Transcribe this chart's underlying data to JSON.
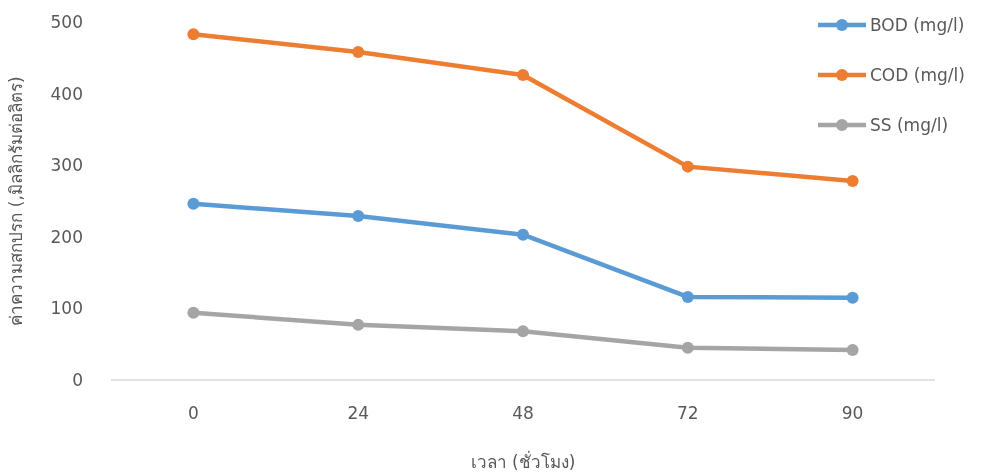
{
  "chart_data": {
    "type": "line",
    "xlabel": "เวลา (ชั่วโมง)",
    "ylabel": "ค่าความสกปรก (,มิลลิกรัมต่อลิตร)",
    "categories": [
      "0",
      "24",
      "48",
      "72",
      "90"
    ],
    "ylim": [
      0,
      500
    ],
    "yticks": [
      0,
      100,
      200,
      300,
      400,
      500
    ],
    "grid": false,
    "legend": "top right",
    "marker": "circle",
    "line_style": "solid",
    "series": [
      {
        "name": "BOD (mg/l)",
        "color": "#5b9bd5",
        "values": [
          246,
          229,
          203,
          116,
          115
        ]
      },
      {
        "name": "COD (mg/l)",
        "color": "#ed7d31",
        "values": [
          483,
          458,
          426,
          298,
          278
        ]
      },
      {
        "name": "SS (mg/l)",
        "color": "#a5a5a5",
        "values": [
          94,
          77,
          68,
          45,
          42
        ]
      }
    ]
  }
}
